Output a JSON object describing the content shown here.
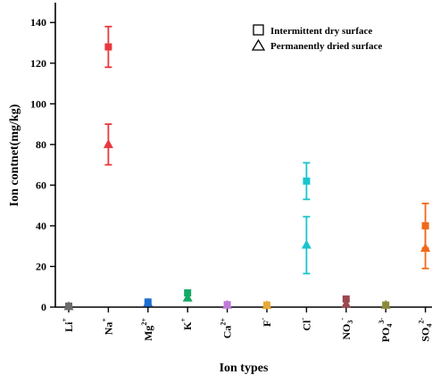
{
  "chart_data": {
    "type": "scatter",
    "xlabel": "Ion types",
    "ylabel": "Ion contnet(mg/kg)",
    "ylim": [
      0,
      150
    ],
    "yticks": [
      0,
      20,
      40,
      60,
      80,
      100,
      120,
      140
    ],
    "grid": false,
    "legend_position": "top-right",
    "categories": [
      {
        "base": "Li",
        "sub": "",
        "sup": "+",
        "color": "#6b6b6b"
      },
      {
        "base": "Na",
        "sub": "",
        "sup": "+",
        "color": "#e8383d"
      },
      {
        "base": "Mg",
        "sub": "",
        "sup": "2+",
        "color": "#1f6fd1"
      },
      {
        "base": "K",
        "sub": "",
        "sup": "+",
        "color": "#14a867"
      },
      {
        "base": "Ca",
        "sub": "",
        "sup": "2+",
        "color": "#c07ad8"
      },
      {
        "base": "F",
        "sub": "",
        "sup": "-",
        "color": "#e8a93a"
      },
      {
        "base": "Cl",
        "sub": "",
        "sup": "-",
        "color": "#19c4cf"
      },
      {
        "base": "NO",
        "sub": "3",
        "sup": "-",
        "color": "#9a4a4f"
      },
      {
        "base": "PO",
        "sub": "4",
        "sup": "3-",
        "color": "#8a8a3a"
      },
      {
        "base": "SO",
        "sub": "4",
        "sup": "2-",
        "color": "#f06a1a"
      }
    ],
    "series": [
      {
        "name": "Intermittent dry surface",
        "marker": "square",
        "values": [
          0.5,
          128,
          2.5,
          7,
          1.2,
          1,
          62,
          4,
          1,
          40
        ],
        "errors": [
          0,
          10,
          0,
          0,
          0,
          0,
          9,
          0,
          0,
          11
        ]
      },
      {
        "name": "Permanently dried surface",
        "marker": "triangle",
        "values": [
          0.3,
          80,
          2,
          4.5,
          1,
          0.8,
          30.5,
          1.5,
          1,
          29
        ],
        "errors": [
          0,
          10,
          0,
          0,
          0,
          0,
          14,
          0,
          0,
          10
        ]
      }
    ]
  }
}
